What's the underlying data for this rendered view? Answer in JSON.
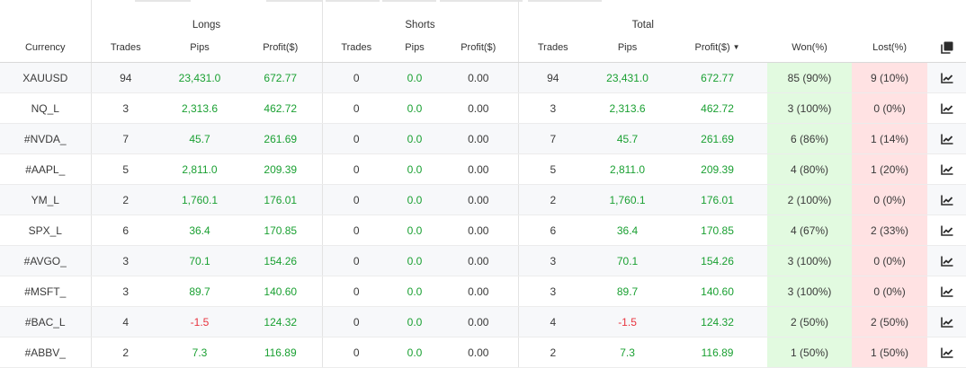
{
  "groups": {
    "longs": "Longs",
    "shorts": "Shorts",
    "total": "Total"
  },
  "columns": {
    "currency": "Currency",
    "trades": "Trades",
    "pips": "Pips",
    "profit": "Profit($)",
    "won": "Won(%)",
    "lost": "Lost(%)"
  },
  "icons": {
    "copy": "copy-icon",
    "chart": "chart-line-icon",
    "sort": "sort-desc-icon"
  },
  "colors": {
    "positive": "#1aa032",
    "negative": "#e8343f",
    "won_bg": "#e2fae0",
    "lost_bg": "#ffe2e3"
  },
  "rows": [
    {
      "currency": "XAUUSD",
      "l_trades": "94",
      "l_pips": "23,431.0",
      "l_profit": "672.77",
      "s_trades": "0",
      "s_pips": "0.0",
      "s_profit": "0.00",
      "t_trades": "94",
      "t_pips": "23,431.0",
      "t_profit": "672.77",
      "won": "85 (90%)",
      "lost": "9 (10%)"
    },
    {
      "currency": "NQ_L",
      "l_trades": "3",
      "l_pips": "2,313.6",
      "l_profit": "462.72",
      "s_trades": "0",
      "s_pips": "0.0",
      "s_profit": "0.00",
      "t_trades": "3",
      "t_pips": "2,313.6",
      "t_profit": "462.72",
      "won": "3 (100%)",
      "lost": "0 (0%)"
    },
    {
      "currency": "#NVDA_",
      "l_trades": "7",
      "l_pips": "45.7",
      "l_profit": "261.69",
      "s_trades": "0",
      "s_pips": "0.0",
      "s_profit": "0.00",
      "t_trades": "7",
      "t_pips": "45.7",
      "t_profit": "261.69",
      "won": "6 (86%)",
      "lost": "1 (14%)"
    },
    {
      "currency": "#AAPL_",
      "l_trades": "5",
      "l_pips": "2,811.0",
      "l_profit": "209.39",
      "s_trades": "0",
      "s_pips": "0.0",
      "s_profit": "0.00",
      "t_trades": "5",
      "t_pips": "2,811.0",
      "t_profit": "209.39",
      "won": "4 (80%)",
      "lost": "1 (20%)"
    },
    {
      "currency": "YM_L",
      "l_trades": "2",
      "l_pips": "1,760.1",
      "l_profit": "176.01",
      "s_trades": "0",
      "s_pips": "0.0",
      "s_profit": "0.00",
      "t_trades": "2",
      "t_pips": "1,760.1",
      "t_profit": "176.01",
      "won": "2 (100%)",
      "lost": "0 (0%)"
    },
    {
      "currency": "SPX_L",
      "l_trades": "6",
      "l_pips": "36.4",
      "l_profit": "170.85",
      "s_trades": "0",
      "s_pips": "0.0",
      "s_profit": "0.00",
      "t_trades": "6",
      "t_pips": "36.4",
      "t_profit": "170.85",
      "won": "4 (67%)",
      "lost": "2 (33%)"
    },
    {
      "currency": "#AVGO_",
      "l_trades": "3",
      "l_pips": "70.1",
      "l_profit": "154.26",
      "s_trades": "0",
      "s_pips": "0.0",
      "s_profit": "0.00",
      "t_trades": "3",
      "t_pips": "70.1",
      "t_profit": "154.26",
      "won": "3 (100%)",
      "lost": "0 (0%)"
    },
    {
      "currency": "#MSFT_",
      "l_trades": "3",
      "l_pips": "89.7",
      "l_profit": "140.60",
      "s_trades": "0",
      "s_pips": "0.0",
      "s_profit": "0.00",
      "t_trades": "3",
      "t_pips": "89.7",
      "t_profit": "140.60",
      "won": "3 (100%)",
      "lost": "0 (0%)"
    },
    {
      "currency": "#BAC_L",
      "l_trades": "4",
      "l_pips": "-1.5",
      "l_profit": "124.32",
      "s_trades": "0",
      "s_pips": "0.0",
      "s_profit": "0.00",
      "t_trades": "4",
      "t_pips": "-1.5",
      "t_profit": "124.32",
      "won": "2 (50%)",
      "lost": "2 (50%)"
    },
    {
      "currency": "#ABBV_",
      "l_trades": "2",
      "l_pips": "7.3",
      "l_profit": "116.89",
      "s_trades": "0",
      "s_pips": "0.0",
      "s_profit": "0.00",
      "t_trades": "2",
      "t_pips": "7.3",
      "t_profit": "116.89",
      "won": "1 (50%)",
      "lost": "1 (50%)"
    }
  ]
}
